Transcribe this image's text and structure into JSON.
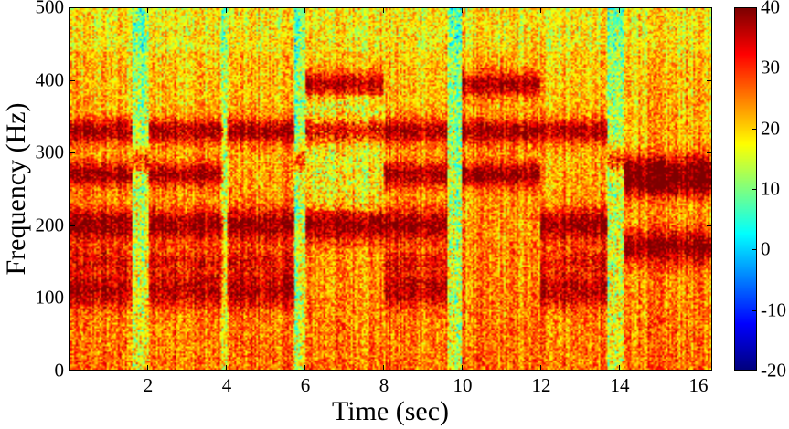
{
  "chart_data": {
    "type": "heatmap",
    "subtype": "spectrogram",
    "title": "",
    "xlabel": "Time (sec)",
    "ylabel": "Frequency (Hz)",
    "xlim": [
      0,
      16.35
    ],
    "ylim": [
      0,
      500
    ],
    "xticks": [
      "2",
      "4",
      "6",
      "8",
      "10",
      "12",
      "14",
      "16"
    ],
    "yticks": [
      "0",
      "100",
      "200",
      "300",
      "400",
      "500"
    ],
    "colorbar": {
      "colormap": "jet",
      "clim": [
        -20,
        40
      ],
      "ticks": [
        "-20",
        "-10",
        "0",
        "10",
        "20",
        "30",
        "40"
      ]
    },
    "segments": [
      {
        "t": [
          0.0,
          1.6
        ],
        "bands_hz": [
          100,
          120,
          150,
          200,
          330,
          270
        ]
      },
      {
        "t": [
          1.6,
          2.0
        ],
        "bands_hz": [
          290
        ]
      },
      {
        "t": [
          2.0,
          3.9
        ],
        "bands_hz": [
          100,
          120,
          150,
          200,
          330,
          270
        ]
      },
      {
        "t": [
          4.0,
          5.7
        ],
        "bands_hz": [
          100,
          120,
          150,
          200,
          330
        ]
      },
      {
        "t": [
          5.7,
          6.0
        ],
        "bands_hz": [
          290
        ]
      },
      {
        "t": [
          6.0,
          8.0
        ],
        "bands_hz": [
          200,
          330,
          395
        ]
      },
      {
        "t": [
          8.0,
          9.6
        ],
        "bands_hz": [
          100,
          120,
          150,
          200,
          330,
          270
        ]
      },
      {
        "t": [
          10.0,
          12.0
        ],
        "bands_hz": [
          330,
          270,
          395
        ]
      },
      {
        "t": [
          12.0,
          13.7
        ],
        "bands_hz": [
          100,
          120,
          150,
          200,
          330
        ]
      },
      {
        "t": [
          13.7,
          14.1
        ],
        "bands_hz": [
          290
        ]
      },
      {
        "t": [
          14.1,
          16.35
        ],
        "bands_hz": [
          170,
          255,
          280
        ]
      }
    ]
  }
}
